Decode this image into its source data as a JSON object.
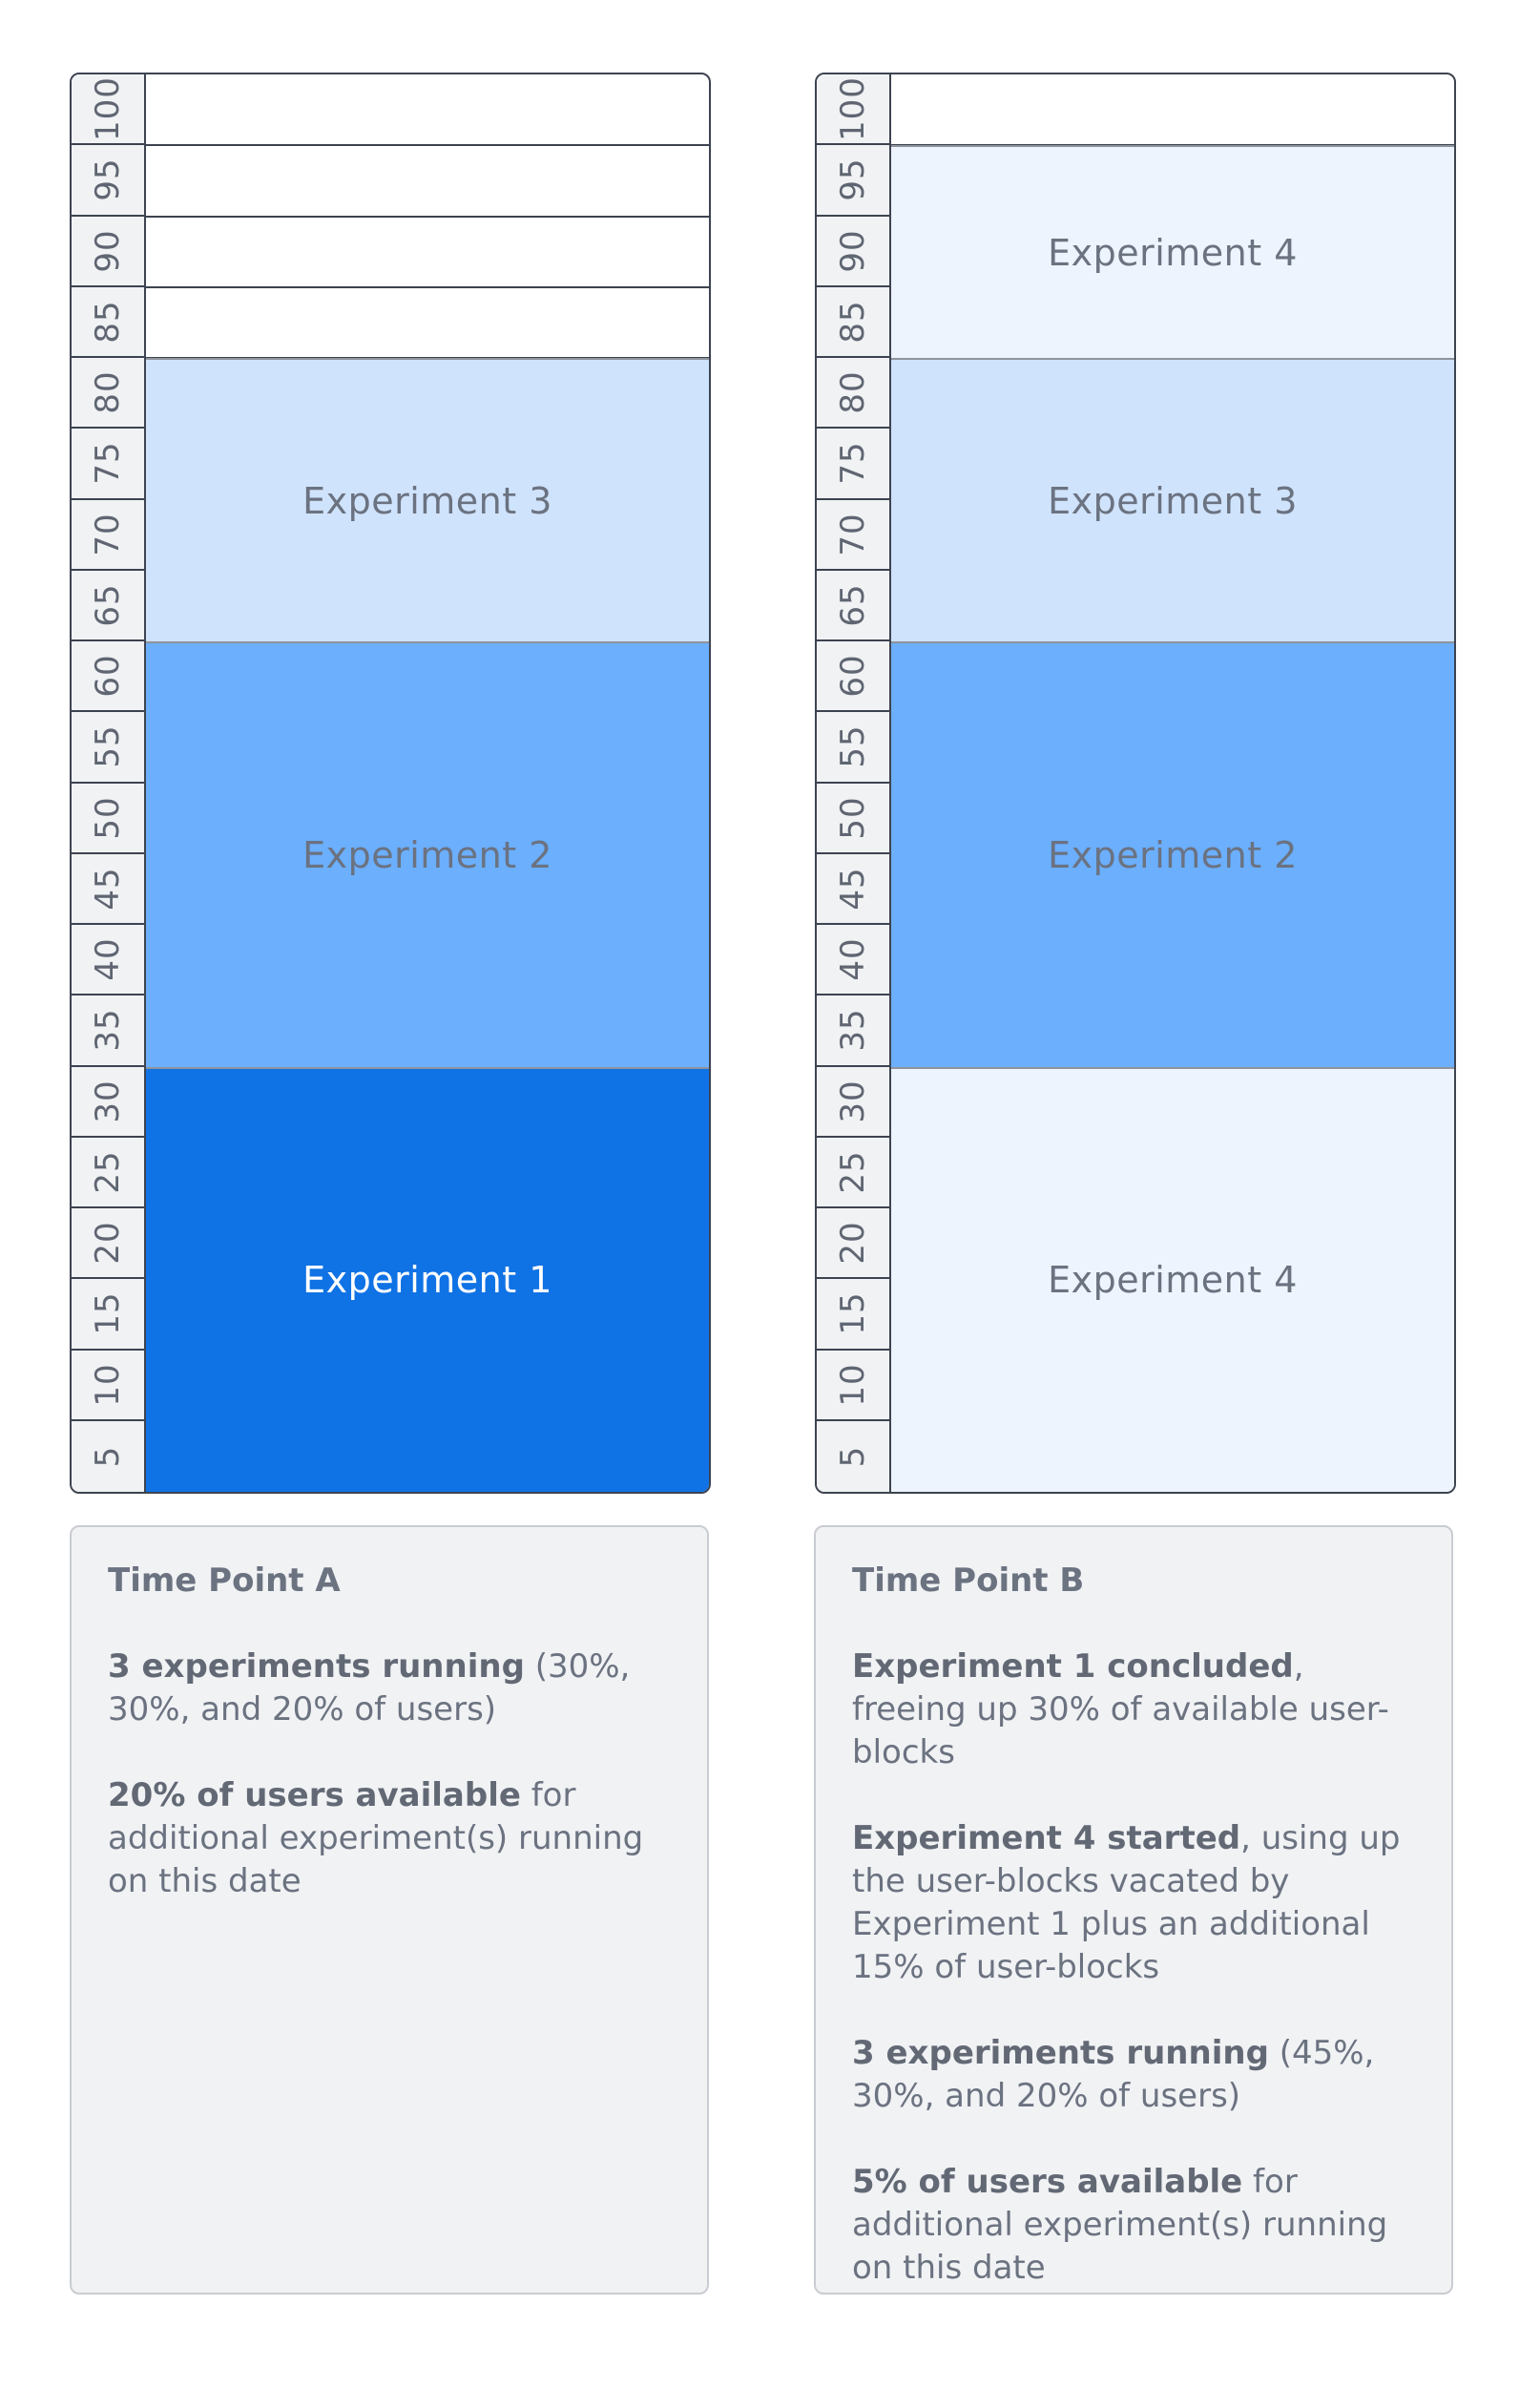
{
  "ruler": [
    "100",
    "95",
    "90",
    "85",
    "80",
    "75",
    "70",
    "65",
    "60",
    "55",
    "50",
    "45",
    "40",
    "35",
    "30",
    "25",
    "20",
    "15",
    "10",
    "5"
  ],
  "colors": {
    "exp1": "#0f72e5",
    "exp2": "#6baffd",
    "exp3": "#cfe3fc",
    "exp4": "#edf4fe",
    "empty": "#ffffff"
  },
  "panel_a": {
    "blocks": [
      {
        "label": "Experiment 3",
        "from": 65,
        "to": 80,
        "color": "#cfe3fc",
        "text_color": "#6b7280"
      },
      {
        "label": "Experiment 2",
        "from": 35,
        "to": 60,
        "color": "#6baffd",
        "text_color": "#6b7280"
      },
      {
        "label": "Experiment 1",
        "from": 5,
        "to": 30,
        "color": "#0f72e5",
        "text_color": "#ffffff"
      }
    ],
    "empty_slots": [
      100,
      95,
      90,
      85
    ]
  },
  "panel_b": {
    "blocks": [
      {
        "label": "Experiment 4",
        "from": 85,
        "to": 95,
        "color": "#edf4fe",
        "text_color": "#6b7280"
      },
      {
        "label": "Experiment 3",
        "from": 65,
        "to": 80,
        "color": "#cfe3fc",
        "text_color": "#6b7280"
      },
      {
        "label": "Experiment 2",
        "from": 35,
        "to": 60,
        "color": "#6baffd",
        "text_color": "#6b7280"
      },
      {
        "label": "Experiment 4",
        "from": 5,
        "to": 30,
        "color": "#edf4fe",
        "text_color": "#6b7280"
      }
    ],
    "empty_slots": [
      100
    ]
  },
  "card_a": {
    "title": "Time Point A",
    "p1_bold": "3 experiments running",
    "p1_rest": " (30%, 30%, and 20% of users)",
    "p2_bold": "20% of users available",
    "p2_rest": " for additional experiment(s) running on this date"
  },
  "card_b": {
    "title": "Time Point B",
    "p1_bold": "Experiment 1 concluded",
    "p1_rest": ", freeing up 30% of available user-blocks",
    "p2_bold": "Experiment 4 started",
    "p2_rest": ", using up the user-blocks vacated by Experiment 1 plus an additional 15% of user-blocks",
    "p3_bold": "3 experiments running",
    "p3_rest": " (45%, 30%, and 20% of users)",
    "p4_bold": "5% of users available",
    "p4_rest": " for additional experiment(s) running on this date"
  }
}
